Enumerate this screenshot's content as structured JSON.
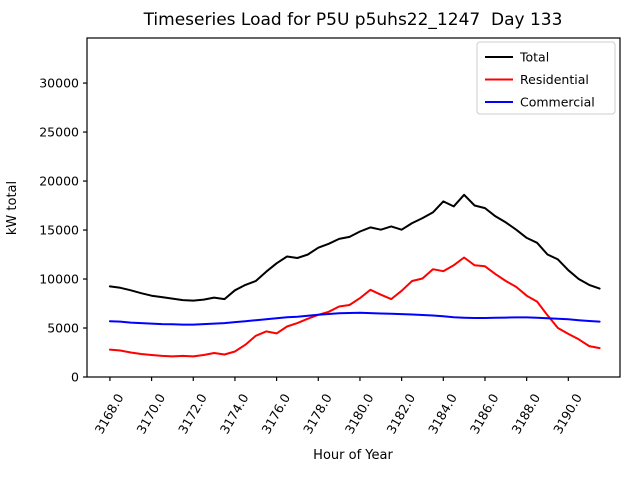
{
  "title": "Timeseries Load for P5U p5uhs22_1247  Day 133",
  "axes": {
    "xlabel": "Hour of Year",
    "ylabel": "kW total"
  },
  "legend": {
    "position": "upper right",
    "items": [
      {
        "label": "Total",
        "color": "#000000"
      },
      {
        "label": "Residential",
        "color": "#ff0000"
      },
      {
        "label": "Commercial",
        "color": "#0000ff"
      }
    ]
  },
  "chart_data": {
    "type": "line",
    "title": "Timeseries Load for P5U p5uhs22_1247  Day 133",
    "xlabel": "Hour of Year",
    "ylabel": "kW total",
    "grid": false,
    "legend_position": "upper right",
    "xlim": [
      3166.9,
      3192.48
    ],
    "ylim": [
      0,
      34600
    ],
    "xticks": [
      3168,
      3170,
      3172,
      3174,
      3176,
      3178,
      3180,
      3182,
      3184,
      3186,
      3188,
      3190
    ],
    "xtick_labels": [
      "3168.0",
      "3170.0",
      "3172.0",
      "3174.0",
      "3176.0",
      "3178.0",
      "3180.0",
      "3182.0",
      "3184.0",
      "3186.0",
      "3188.0",
      "3190.0"
    ],
    "yticks": [
      0,
      5000,
      10000,
      15000,
      20000,
      25000,
      30000
    ],
    "ytick_labels": [
      "0",
      "5000",
      "10000",
      "15000",
      "20000",
      "25000",
      "30000"
    ],
    "x": [
      3168.0,
      3168.5,
      3169.0,
      3169.5,
      3170.0,
      3170.5,
      3171.0,
      3171.5,
      3172.0,
      3172.5,
      3173.0,
      3173.5,
      3174.0,
      3174.5,
      3175.0,
      3175.5,
      3176.0,
      3176.5,
      3177.0,
      3177.5,
      3178.0,
      3178.5,
      3179.0,
      3179.5,
      3180.0,
      3180.5,
      3181.0,
      3181.5,
      3182.0,
      3182.5,
      3183.0,
      3183.5,
      3184.0,
      3184.5,
      3185.0,
      3185.5,
      3186.0,
      3186.5,
      3187.0,
      3187.5,
      3188.0,
      3188.5,
      3189.0,
      3189.5,
      3190.0,
      3190.5,
      3191.0,
      3191.5
    ],
    "series": [
      {
        "name": "Total",
        "color": "#000000",
        "values": [
          9250,
          9100,
          8850,
          8550,
          8300,
          8150,
          8000,
          7850,
          7800,
          7900,
          8100,
          7950,
          8850,
          9400,
          9800,
          10750,
          11600,
          12300,
          12150,
          12500,
          13200,
          13600,
          14100,
          14300,
          14850,
          15270,
          15030,
          15370,
          15030,
          15710,
          16220,
          16800,
          17920,
          17410,
          18600,
          17500,
          17240,
          16400,
          15780,
          15030,
          14200,
          13700,
          12500,
          12000,
          10900,
          10000,
          9400,
          9020
        ]
      },
      {
        "name": "Residential",
        "color": "#ff0000",
        "values": [
          2800,
          2700,
          2500,
          2350,
          2250,
          2150,
          2100,
          2150,
          2100,
          2250,
          2450,
          2300,
          2600,
          3300,
          4200,
          4650,
          4450,
          5150,
          5500,
          5950,
          6350,
          6650,
          7200,
          7350,
          8050,
          8900,
          8400,
          7950,
          8800,
          9800,
          10050,
          11000,
          10800,
          11400,
          12200,
          11400,
          11300,
          10500,
          9800,
          9200,
          8300,
          7700,
          6300,
          5000,
          4400,
          3850,
          3150,
          2950
        ]
      },
      {
        "name": "Commercial",
        "color": "#0000ff",
        "values": [
          5700,
          5650,
          5550,
          5500,
          5450,
          5400,
          5380,
          5350,
          5350,
          5400,
          5450,
          5500,
          5600,
          5700,
          5800,
          5900,
          6000,
          6100,
          6150,
          6250,
          6350,
          6430,
          6500,
          6530,
          6550,
          6520,
          6480,
          6450,
          6420,
          6380,
          6330,
          6280,
          6200,
          6100,
          6050,
          6020,
          6020,
          6050,
          6060,
          6080,
          6080,
          6050,
          6000,
          5950,
          5900,
          5800,
          5720,
          5650
        ]
      }
    ]
  }
}
